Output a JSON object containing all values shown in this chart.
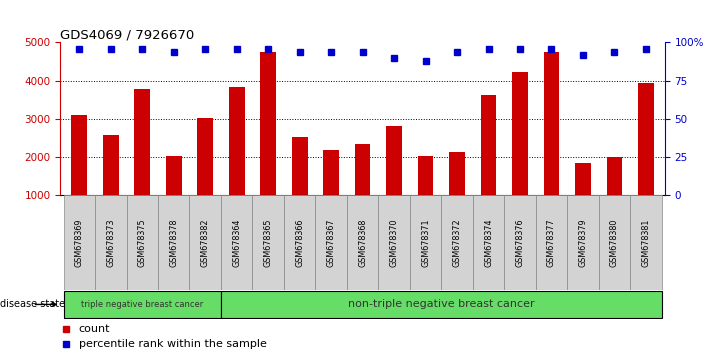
{
  "title": "GDS4069 / 7926670",
  "samples": [
    "GSM678369",
    "GSM678373",
    "GSM678375",
    "GSM678378",
    "GSM678382",
    "GSM678364",
    "GSM678365",
    "GSM678366",
    "GSM678367",
    "GSM678368",
    "GSM678370",
    "GSM678371",
    "GSM678372",
    "GSM678374",
    "GSM678376",
    "GSM678377",
    "GSM678379",
    "GSM678380",
    "GSM678381"
  ],
  "counts": [
    3100,
    2580,
    3790,
    2010,
    3010,
    3820,
    4760,
    2520,
    2180,
    2330,
    2800,
    2020,
    2110,
    3620,
    4220,
    4760,
    1820,
    2000,
    3940
  ],
  "percentiles": [
    96,
    96,
    96,
    94,
    96,
    96,
    96,
    94,
    94,
    94,
    90,
    88,
    94,
    96,
    96,
    96,
    92,
    94,
    96
  ],
  "bar_color": "#cc0000",
  "dot_color": "#0000cc",
  "ylim_left": [
    1000,
    5000
  ],
  "ylim_right": [
    0,
    100
  ],
  "yticks_left": [
    1000,
    2000,
    3000,
    4000,
    5000
  ],
  "yticks_right": [
    0,
    25,
    50,
    75,
    100
  ],
  "ytick_labels_right": [
    "0",
    "25",
    "50",
    "75",
    "100%"
  ],
  "group1_label": "triple negative breast cancer",
  "group2_label": "non-triple negative breast cancer",
  "group1_count": 5,
  "legend_count_label": "count",
  "legend_pct_label": "percentile rank within the sample",
  "disease_state_label": "disease state",
  "left_color": "#cc0000",
  "right_color": "#0000cc",
  "cell_bg": "#d3d3d3",
  "green_bg": "#66dd66",
  "bar_width": 0.5
}
